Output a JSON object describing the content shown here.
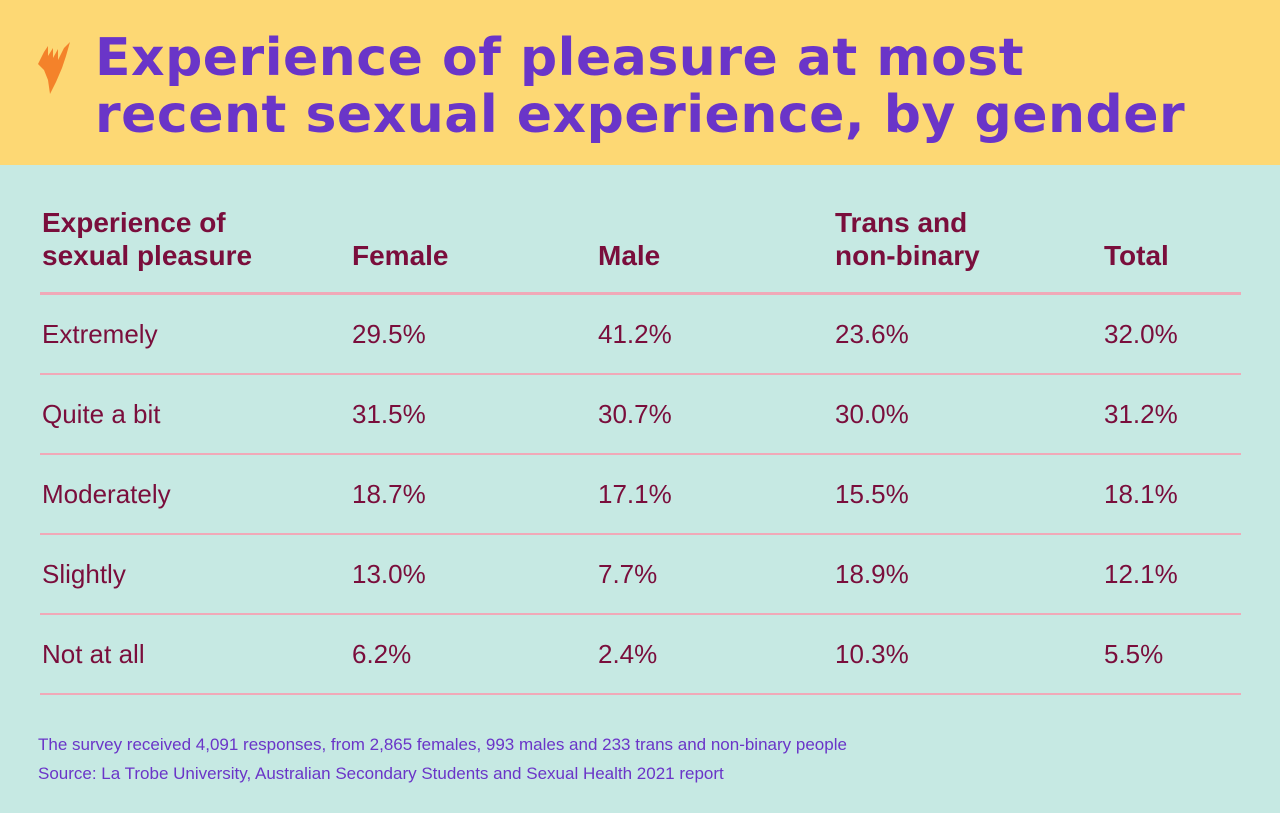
{
  "header": {
    "title_line1": "Experience of pleasure at most",
    "title_line2": "recent sexual experience, by gender",
    "logo_icon": "sbs-logo-icon"
  },
  "colors": {
    "header_bg": "#FDD874",
    "title": "#6A35C8",
    "body_bg": "#C6E9E3",
    "text": "#7A0E3C",
    "rule": "#F0A9B8",
    "logo": "#F4822A"
  },
  "chart_data": {
    "type": "table",
    "title": "Experience of pleasure at most recent sexual experience, by gender",
    "columns": [
      {
        "line1": "Experience of",
        "line2": "sexual pleasure"
      },
      {
        "line1": "",
        "line2": "Female"
      },
      {
        "line1": "",
        "line2": "Male"
      },
      {
        "line1": "Trans and",
        "line2": "non-binary"
      },
      {
        "line1": "",
        "line2": "Total"
      }
    ],
    "rows": [
      [
        "Extremely",
        "29.5%",
        "41.2%",
        "23.6%",
        "32.0%"
      ],
      [
        "Quite a bit",
        "31.5%",
        "30.7%",
        "30.0%",
        "31.2%"
      ],
      [
        "Moderately",
        "18.7%",
        "17.1%",
        "15.5%",
        "18.1%"
      ],
      [
        "Slightly",
        "13.0%",
        "7.7%",
        "18.9%",
        "12.1%"
      ],
      [
        "Not at all",
        "6.2%",
        "2.4%",
        "10.3%",
        "5.5%"
      ]
    ]
  },
  "footer": {
    "note": "The survey received 4,091 responses, from 2,865 females, 993 males and 233 trans and non-binary people",
    "source": "Source: La Trobe University, Australian Secondary Students and Sexual Health 2021 report"
  }
}
